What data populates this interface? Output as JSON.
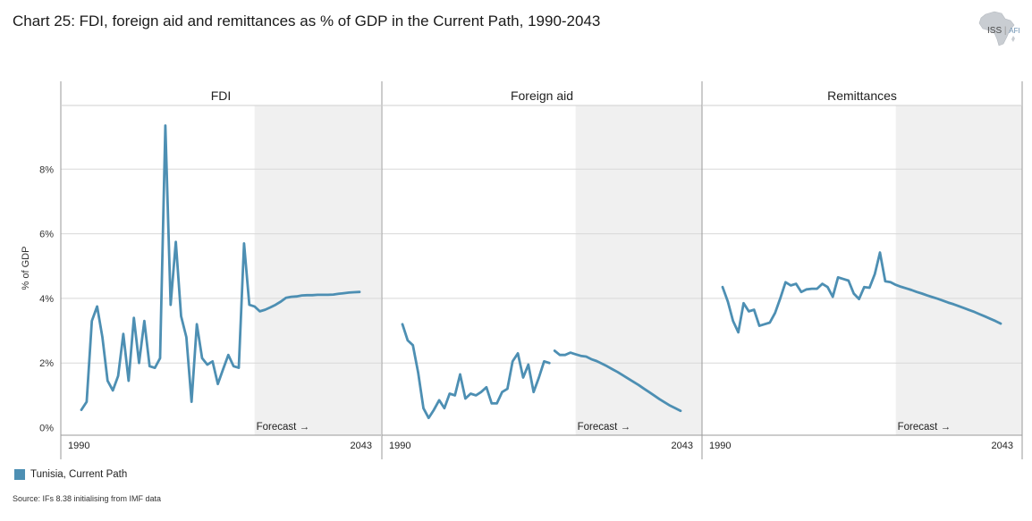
{
  "title": "Chart 25: FDI, foreign aid and remittances as % of GDP in the Current Path, 1990-2043",
  "logo": {
    "text": "ISS",
    "sub": "AFI"
  },
  "source": "Source: IFs 8.38 initialising from IMF data",
  "colors": {
    "series": "#4d8fb3",
    "forecast_band": "#f0f0f0",
    "grid": "#d8d8d8",
    "axis": "#9a9a9a"
  },
  "chart_data": {
    "type": "line",
    "ylabel": "% of GDP",
    "ylim": [
      0,
      10
    ],
    "yticks": [
      0,
      2,
      4,
      6,
      8
    ],
    "ytick_labels": [
      "0%",
      "2%",
      "4%",
      "6%",
      "8%"
    ],
    "xlim": [
      1990,
      2043
    ],
    "xtick_labels": [
      "1990",
      "2043"
    ],
    "forecast_start": 2023,
    "forecast_label": "Forecast →",
    "legend": [
      {
        "name": "Tunisia, Current Path",
        "color": "#4d8fb3"
      }
    ],
    "panels": [
      {
        "name": "FDI",
        "segments": [
          [
            [
              1990,
              0.55
            ],
            [
              1991,
              0.8
            ],
            [
              1992,
              3.3
            ],
            [
              1993,
              3.75
            ],
            [
              1994,
              2.8
            ],
            [
              1995,
              1.45
            ],
            [
              1996,
              1.15
            ],
            [
              1997,
              1.6
            ],
            [
              1998,
              2.9
            ],
            [
              1999,
              1.45
            ],
            [
              2000,
              3.4
            ],
            [
              2001,
              2.0
            ],
            [
              2002,
              3.3
            ],
            [
              2003,
              1.9
            ],
            [
              2004,
              1.85
            ],
            [
              2005,
              2.15
            ],
            [
              2006,
              9.35
            ],
            [
              2007,
              3.8
            ],
            [
              2008,
              5.75
            ],
            [
              2009,
              3.45
            ],
            [
              2010,
              2.8
            ],
            [
              2011,
              0.8
            ],
            [
              2012,
              3.2
            ],
            [
              2013,
              2.15
            ],
            [
              2014,
              1.95
            ],
            [
              2015,
              2.05
            ],
            [
              2016,
              1.35
            ],
            [
              2017,
              1.8
            ],
            [
              2018,
              2.25
            ],
            [
              2019,
              1.9
            ],
            [
              2020,
              1.85
            ],
            [
              2021,
              5.7
            ],
            [
              2022,
              3.8
            ],
            [
              2023,
              3.75
            ],
            [
              2024,
              3.6
            ],
            [
              2025,
              3.65
            ],
            [
              2026,
              3.72
            ],
            [
              2027,
              3.8
            ],
            [
              2028,
              3.9
            ],
            [
              2029,
              4.02
            ],
            [
              2030,
              4.05
            ],
            [
              2031,
              4.06
            ],
            [
              2032,
              4.09
            ],
            [
              2033,
              4.1
            ],
            [
              2034,
              4.1
            ],
            [
              2035,
              4.11
            ],
            [
              2036,
              4.11
            ],
            [
              2037,
              4.11
            ],
            [
              2038,
              4.12
            ],
            [
              2039,
              4.14
            ],
            [
              2040,
              4.16
            ],
            [
              2041,
              4.18
            ],
            [
              2042,
              4.19
            ],
            [
              2043,
              4.2
            ]
          ]
        ]
      },
      {
        "name": "Foreign aid",
        "segments": [
          [
            [
              1990,
              3.2
            ],
            [
              1991,
              2.7
            ],
            [
              1992,
              2.55
            ],
            [
              1993,
              1.7
            ],
            [
              1994,
              0.6
            ],
            [
              1995,
              0.3
            ],
            [
              1996,
              0.55
            ],
            [
              1997,
              0.85
            ],
            [
              1998,
              0.6
            ],
            [
              1999,
              1.05
            ],
            [
              2000,
              1.0
            ],
            [
              2001,
              1.65
            ],
            [
              2002,
              0.9
            ],
            [
              2003,
              1.05
            ],
            [
              2004,
              1.0
            ],
            [
              2005,
              1.1
            ],
            [
              2006,
              1.25
            ],
            [
              2007,
              0.75
            ],
            [
              2008,
              0.75
            ],
            [
              2009,
              1.1
            ],
            [
              2010,
              1.2
            ],
            [
              2011,
              2.05
            ],
            [
              2012,
              2.3
            ],
            [
              2013,
              1.55
            ],
            [
              2014,
              1.95
            ],
            [
              2015,
              1.1
            ],
            [
              2016,
              1.55
            ],
            [
              2017,
              2.05
            ],
            [
              2018,
              2.0
            ]
          ],
          [
            [
              2019,
              2.38
            ],
            [
              2020,
              2.25
            ],
            [
              2021,
              2.25
            ],
            [
              2022,
              2.32
            ],
            [
              2023,
              2.27
            ],
            [
              2024,
              2.22
            ],
            [
              2025,
              2.2
            ],
            [
              2026,
              2.12
            ],
            [
              2027,
              2.06
            ],
            [
              2028,
              1.98
            ],
            [
              2029,
              1.9
            ],
            [
              2030,
              1.81
            ],
            [
              2031,
              1.72
            ],
            [
              2032,
              1.62
            ],
            [
              2033,
              1.52
            ],
            [
              2034,
              1.42
            ],
            [
              2035,
              1.32
            ],
            [
              2036,
              1.21
            ],
            [
              2037,
              1.1
            ],
            [
              2038,
              0.99
            ],
            [
              2039,
              0.88
            ],
            [
              2040,
              0.78
            ],
            [
              2041,
              0.68
            ],
            [
              2042,
              0.6
            ],
            [
              2043,
              0.52
            ]
          ]
        ]
      },
      {
        "name": "Remittances",
        "segments": [
          [
            [
              1990,
              4.35
            ],
            [
              1991,
              3.9
            ],
            [
              1992,
              3.3
            ],
            [
              1993,
              2.95
            ],
            [
              1994,
              3.85
            ],
            [
              1995,
              3.6
            ],
            [
              1996,
              3.65
            ],
            [
              1997,
              3.15
            ],
            [
              1998,
              3.2
            ],
            [
              1999,
              3.25
            ],
            [
              2000,
              3.55
            ],
            [
              2001,
              4.0
            ],
            [
              2002,
              4.5
            ],
            [
              2003,
              4.4
            ],
            [
              2004,
              4.45
            ],
            [
              2005,
              4.2
            ],
            [
              2006,
              4.28
            ],
            [
              2007,
              4.3
            ],
            [
              2008,
              4.3
            ],
            [
              2009,
              4.45
            ],
            [
              2010,
              4.35
            ],
            [
              2011,
              4.05
            ],
            [
              2012,
              4.65
            ],
            [
              2013,
              4.6
            ],
            [
              2014,
              4.55
            ],
            [
              2015,
              4.15
            ],
            [
              2016,
              3.98
            ],
            [
              2017,
              4.35
            ],
            [
              2018,
              4.33
            ],
            [
              2019,
              4.75
            ],
            [
              2020,
              5.42
            ],
            [
              2021,
              4.53
            ],
            [
              2022,
              4.5
            ],
            [
              2023,
              4.42
            ],
            [
              2024,
              4.36
            ],
            [
              2025,
              4.31
            ],
            [
              2026,
              4.26
            ],
            [
              2027,
              4.2
            ],
            [
              2028,
              4.15
            ],
            [
              2029,
              4.09
            ],
            [
              2030,
              4.04
            ],
            [
              2031,
              3.99
            ],
            [
              2032,
              3.93
            ],
            [
              2033,
              3.87
            ],
            [
              2034,
              3.82
            ],
            [
              2035,
              3.76
            ],
            [
              2036,
              3.7
            ],
            [
              2037,
              3.64
            ],
            [
              2038,
              3.58
            ],
            [
              2039,
              3.51
            ],
            [
              2040,
              3.44
            ],
            [
              2041,
              3.37
            ],
            [
              2042,
              3.3
            ],
            [
              2043,
              3.22
            ]
          ]
        ]
      }
    ]
  }
}
